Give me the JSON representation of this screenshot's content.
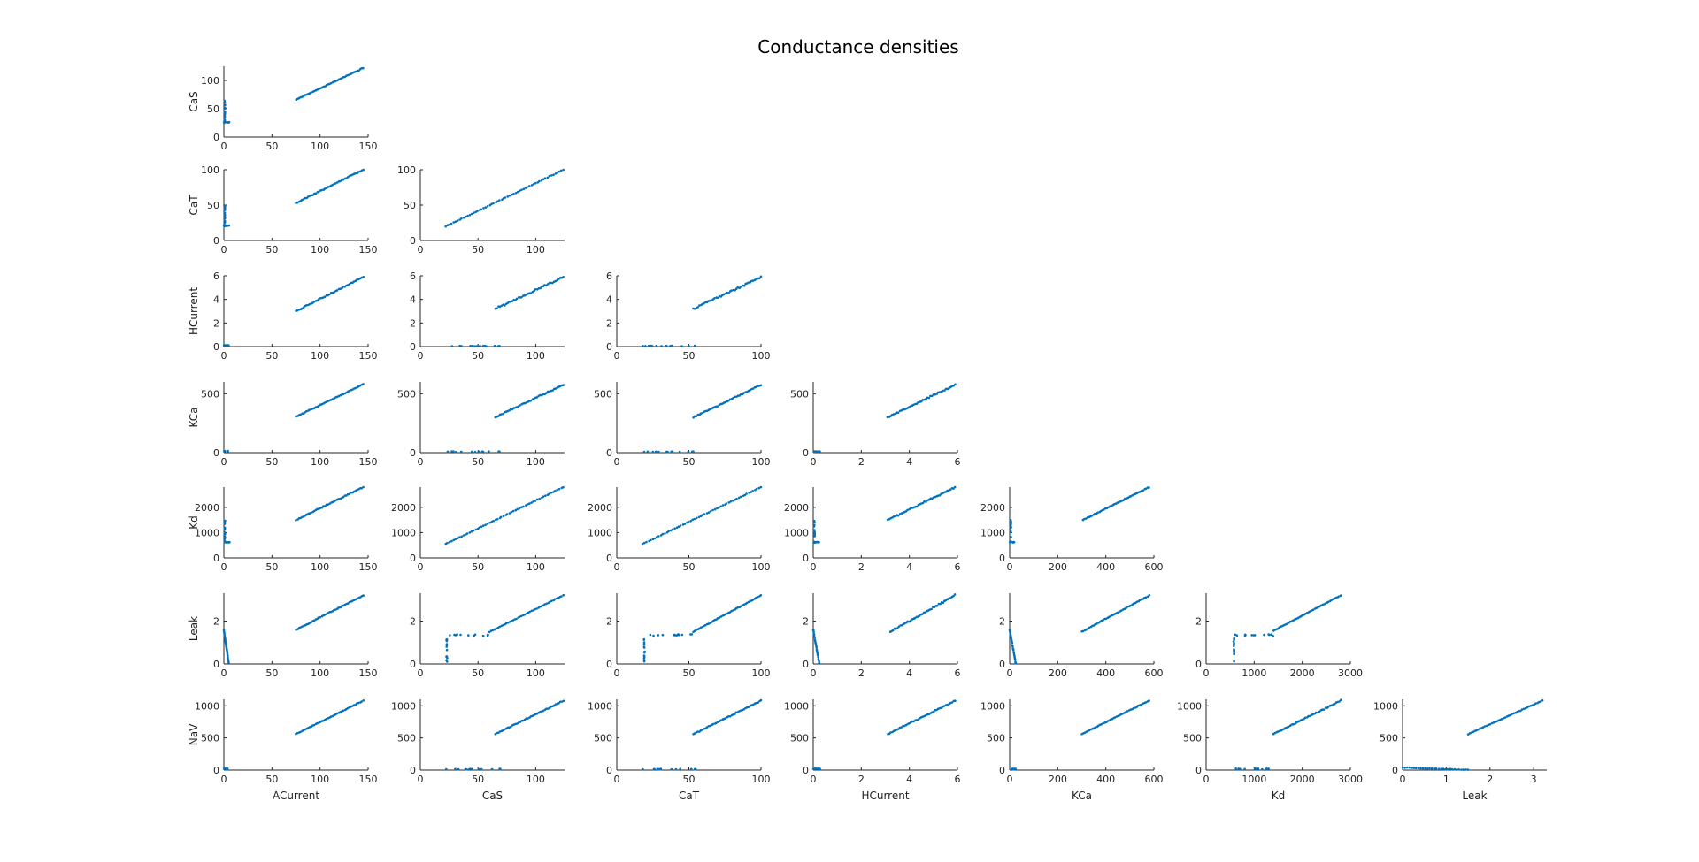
{
  "figure": {
    "title": "Conductance densities",
    "marker_color": "#0072BD"
  },
  "chart_data": {
    "type": "scatter",
    "title": "Conductance densities",
    "layout": "lower-triangular scatter matrix",
    "variables": [
      "ACurrent",
      "CaS",
      "CaT",
      "HCurrent",
      "KCa",
      "Kd",
      "Leak",
      "NaV"
    ],
    "axes": {
      "ACurrent": {
        "lim": [
          0,
          150
        ],
        "ticks": [
          0,
          50,
          100,
          150
        ]
      },
      "CaS": {
        "lim": [
          0,
          125
        ],
        "ticks": [
          0,
          50,
          100
        ]
      },
      "CaT": {
        "lim": [
          0,
          100
        ],
        "ticks": [
          0,
          50,
          100
        ]
      },
      "HCurrent": {
        "lim": [
          0,
          6
        ],
        "ticks": [
          0,
          2,
          4,
          6
        ]
      },
      "KCa": {
        "lim": [
          0,
          600
        ],
        "ticks": [
          0,
          200,
          400,
          600
        ],
        "ylim": [
          0,
          600
        ],
        "yticks": [
          0,
          500
        ]
      },
      "Kd": {
        "lim": [
          0,
          3000
        ],
        "ticks": [
          0,
          1000,
          2000,
          3000
        ],
        "ylim": [
          0,
          2800
        ],
        "yticks": [
          0,
          1000,
          2000
        ]
      },
      "Leak": {
        "lim": [
          0,
          3.3
        ],
        "ticks": [
          0,
          1,
          2,
          3
        ],
        "ylim": [
          0,
          3.3
        ],
        "yticks": [
          0,
          2
        ]
      },
      "NaV": {
        "lim": [
          0,
          1100
        ],
        "ticks": [
          0,
          500,
          1000
        ]
      }
    },
    "panels": [
      {
        "x": "ACurrent",
        "y": "CaS",
        "clusters": [
          {
            "type": "line",
            "x": [
              75,
              145
            ],
            "y": [
              66,
              122
            ],
            "n": 45,
            "noise": 1.2
          },
          {
            "type": "vertical",
            "x": 1,
            "y": [
              25,
              65
            ],
            "n": 18,
            "noise": 0.5
          },
          {
            "type": "horizontal",
            "y": 26,
            "x": [
              0,
              6
            ],
            "n": 10,
            "noise": 0.5
          }
        ]
      },
      {
        "x": "ACurrent",
        "y": "CaT",
        "clusters": [
          {
            "type": "line",
            "x": [
              75,
              145
            ],
            "y": [
              53,
              100
            ],
            "n": 45,
            "noise": 1.0
          },
          {
            "type": "vertical",
            "x": 1,
            "y": [
              20,
              52
            ],
            "n": 18,
            "noise": 0.5
          },
          {
            "type": "horizontal",
            "y": 21,
            "x": [
              0,
              6
            ],
            "n": 10,
            "noise": 0.5
          }
        ]
      },
      {
        "x": "CaS",
        "y": "CaT",
        "clusters": [
          {
            "type": "line",
            "x": [
              22,
              124
            ],
            "y": [
              20,
              100
            ],
            "n": 60,
            "noise": 0.6
          }
        ]
      },
      {
        "x": "ACurrent",
        "y": "HCurrent",
        "clusters": [
          {
            "type": "line",
            "x": [
              75,
              145
            ],
            "y": [
              3.0,
              5.9
            ],
            "n": 45,
            "noise": 0.07
          },
          {
            "type": "horizontal",
            "y": 0.1,
            "x": [
              0,
              5
            ],
            "n": 10,
            "noise": 0.04
          }
        ]
      },
      {
        "x": "CaS",
        "y": "HCurrent",
        "clusters": [
          {
            "type": "line",
            "x": [
              65,
              124
            ],
            "y": [
              3.2,
              5.9
            ],
            "n": 45,
            "noise": 0.1
          },
          {
            "type": "horizontal",
            "y": 0.05,
            "x": [
              22,
              70
            ],
            "n": 15,
            "noise": 0.04
          }
        ]
      },
      {
        "x": "CaT",
        "y": "HCurrent",
        "clusters": [
          {
            "type": "line",
            "x": [
              53,
              100
            ],
            "y": [
              3.2,
              5.9
            ],
            "n": 45,
            "noise": 0.1
          },
          {
            "type": "horizontal",
            "y": 0.05,
            "x": [
              18,
              55
            ],
            "n": 15,
            "noise": 0.04
          }
        ]
      },
      {
        "x": "ACurrent",
        "y": "KCa",
        "clusters": [
          {
            "type": "line",
            "x": [
              75,
              145
            ],
            "y": [
              305,
              580
            ],
            "n": 45,
            "noise": 4
          },
          {
            "type": "horizontal",
            "y": 12,
            "x": [
              0,
              5
            ],
            "n": 10,
            "noise": 4
          }
        ]
      },
      {
        "x": "CaS",
        "y": "KCa",
        "clusters": [
          {
            "type": "line",
            "x": [
              65,
              124
            ],
            "y": [
              300,
              575
            ],
            "n": 45,
            "noise": 8
          },
          {
            "type": "horizontal",
            "y": 8,
            "x": [
              22,
              70
            ],
            "n": 15,
            "noise": 4
          }
        ]
      },
      {
        "x": "CaT",
        "y": "KCa",
        "clusters": [
          {
            "type": "line",
            "x": [
              53,
              100
            ],
            "y": [
              300,
              575
            ],
            "n": 45,
            "noise": 8
          },
          {
            "type": "horizontal",
            "y": 8,
            "x": [
              18,
              55
            ],
            "n": 15,
            "noise": 4
          }
        ]
      },
      {
        "x": "HCurrent",
        "y": "KCa",
        "clusters": [
          {
            "type": "line",
            "x": [
              3.1,
              5.9
            ],
            "y": [
              300,
              575
            ],
            "n": 45,
            "noise": 8
          },
          {
            "type": "horizontal",
            "y": 10,
            "x": [
              0,
              0.3
            ],
            "n": 10,
            "noise": 4
          }
        ]
      },
      {
        "x": "ACurrent",
        "y": "Kd",
        "clusters": [
          {
            "type": "line",
            "x": [
              75,
              145
            ],
            "y": [
              1500,
              2800
            ],
            "n": 45,
            "noise": 25
          },
          {
            "type": "vertical",
            "x": 1,
            "y": [
              600,
              1500
            ],
            "n": 18,
            "noise": 0.5
          },
          {
            "type": "horizontal",
            "y": 620,
            "x": [
              0,
              6
            ],
            "n": 10,
            "noise": 10
          }
        ]
      },
      {
        "x": "CaS",
        "y": "Kd",
        "clusters": [
          {
            "type": "line",
            "x": [
              22,
              124
            ],
            "y": [
              550,
              2800
            ],
            "n": 60,
            "noise": 12
          }
        ]
      },
      {
        "x": "CaT",
        "y": "Kd",
        "clusters": [
          {
            "type": "line",
            "x": [
              18,
              100
            ],
            "y": [
              550,
              2800
            ],
            "n": 60,
            "noise": 12
          }
        ]
      },
      {
        "x": "HCurrent",
        "y": "Kd",
        "clusters": [
          {
            "type": "line",
            "x": [
              3.1,
              5.9
            ],
            "y": [
              1500,
              2800
            ],
            "n": 45,
            "noise": 40
          },
          {
            "type": "vertical",
            "x": 0.05,
            "y": [
              600,
              1500
            ],
            "n": 18,
            "noise": 0.02
          },
          {
            "type": "horizontal",
            "y": 620,
            "x": [
              0,
              0.3
            ],
            "n": 10,
            "noise": 10
          }
        ]
      },
      {
        "x": "KCa",
        "y": "Kd",
        "clusters": [
          {
            "type": "line",
            "x": [
              305,
              580
            ],
            "y": [
              1500,
              2800
            ],
            "n": 45,
            "noise": 25
          },
          {
            "type": "vertical",
            "x": 5,
            "y": [
              600,
              1500
            ],
            "n": 18,
            "noise": 2
          },
          {
            "type": "horizontal",
            "y": 620,
            "x": [
              0,
              25
            ],
            "n": 10,
            "noise": 10
          }
        ]
      },
      {
        "x": "ACurrent",
        "y": "Leak",
        "clusters": [
          {
            "type": "line",
            "x": [
              75,
              145
            ],
            "y": [
              1.6,
              3.2
            ],
            "n": 45,
            "noise": 0.03
          },
          {
            "type": "line",
            "x": [
              0,
              5
            ],
            "y": [
              1.6,
              0.05
            ],
            "n": 25,
            "noise": 0.05
          }
        ]
      },
      {
        "x": "CaS",
        "y": "Leak",
        "clusters": [
          {
            "type": "line",
            "x": [
              60,
              124
            ],
            "y": [
              1.5,
              3.2
            ],
            "n": 45,
            "noise": 0.02
          },
          {
            "type": "vertical",
            "x": 23,
            "y": [
              0.1,
              1.2
            ],
            "n": 15,
            "noise": 0.5
          },
          {
            "type": "horizontal",
            "y": 1.35,
            "x": [
              25,
              60
            ],
            "n": 14,
            "noise": 0.07
          }
        ]
      },
      {
        "x": "CaT",
        "y": "Leak",
        "clusters": [
          {
            "type": "line",
            "x": [
              53,
              100
            ],
            "y": [
              1.5,
              3.2
            ],
            "n": 45,
            "noise": 0.02
          },
          {
            "type": "vertical",
            "x": 19,
            "y": [
              0.1,
              1.2
            ],
            "n": 15,
            "noise": 0.5
          },
          {
            "type": "horizontal",
            "y": 1.35,
            "x": [
              20,
              55
            ],
            "n": 14,
            "noise": 0.07
          }
        ]
      },
      {
        "x": "HCurrent",
        "y": "Leak",
        "clusters": [
          {
            "type": "line",
            "x": [
              3.2,
              5.9
            ],
            "y": [
              1.5,
              3.2
            ],
            "n": 45,
            "noise": 0.05
          },
          {
            "type": "line",
            "x": [
              0,
              0.25
            ],
            "y": [
              1.6,
              0.05
            ],
            "n": 25,
            "noise": 0.05
          }
        ]
      },
      {
        "x": "KCa",
        "y": "Leak",
        "clusters": [
          {
            "type": "line",
            "x": [
              300,
              580
            ],
            "y": [
              1.5,
              3.2
            ],
            "n": 45,
            "noise": 0.03
          },
          {
            "type": "line",
            "x": [
              0,
              25
            ],
            "y": [
              1.6,
              0.05
            ],
            "n": 25,
            "noise": 0.05
          }
        ]
      },
      {
        "x": "Kd",
        "y": "Leak",
        "clusters": [
          {
            "type": "line",
            "x": [
              1400,
              2800
            ],
            "y": [
              1.55,
              3.2
            ],
            "n": 45,
            "noise": 0.02
          },
          {
            "type": "vertical",
            "x": 580,
            "y": [
              0.1,
              1.2
            ],
            "n": 15,
            "noise": 12
          },
          {
            "type": "horizontal",
            "y": 1.35,
            "x": [
              600,
              1400
            ],
            "n": 14,
            "noise": 0.07
          }
        ]
      },
      {
        "x": "ACurrent",
        "y": "NaV",
        "clusters": [
          {
            "type": "line",
            "x": [
              75,
              145
            ],
            "y": [
              560,
              1080
            ],
            "n": 45,
            "noise": 6
          },
          {
            "type": "horizontal",
            "y": 20,
            "x": [
              0,
              5
            ],
            "n": 10,
            "noise": 10
          }
        ]
      },
      {
        "x": "CaS",
        "y": "NaV",
        "clusters": [
          {
            "type": "line",
            "x": [
              65,
              124
            ],
            "y": [
              560,
              1080
            ],
            "n": 45,
            "noise": 12
          },
          {
            "type": "horizontal",
            "y": 15,
            "x": [
              22,
              70
            ],
            "n": 15,
            "noise": 8
          }
        ]
      },
      {
        "x": "CaT",
        "y": "NaV",
        "clusters": [
          {
            "type": "line",
            "x": [
              53,
              100
            ],
            "y": [
              560,
              1080
            ],
            "n": 45,
            "noise": 12
          },
          {
            "type": "horizontal",
            "y": 15,
            "x": [
              18,
              55
            ],
            "n": 15,
            "noise": 8
          }
        ]
      },
      {
        "x": "HCurrent",
        "y": "NaV",
        "clusters": [
          {
            "type": "line",
            "x": [
              3.1,
              5.9
            ],
            "y": [
              560,
              1080
            ],
            "n": 45,
            "noise": 12
          },
          {
            "type": "horizontal",
            "y": 20,
            "x": [
              0,
              0.3
            ],
            "n": 10,
            "noise": 10
          }
        ]
      },
      {
        "x": "KCa",
        "y": "NaV",
        "clusters": [
          {
            "type": "line",
            "x": [
              300,
              580
            ],
            "y": [
              560,
              1080
            ],
            "n": 45,
            "noise": 6
          },
          {
            "type": "horizontal",
            "y": 20,
            "x": [
              0,
              25
            ],
            "n": 10,
            "noise": 10
          }
        ]
      },
      {
        "x": "Kd",
        "y": "NaV",
        "clusters": [
          {
            "type": "line",
            "x": [
              1400,
              2800
            ],
            "y": [
              560,
              1080
            ],
            "n": 45,
            "noise": 12
          },
          {
            "type": "horizontal",
            "y": 20,
            "x": [
              550,
              1300
            ],
            "n": 14,
            "noise": 10
          }
        ]
      },
      {
        "x": "Leak",
        "y": "NaV",
        "clusters": [
          {
            "type": "line",
            "x": [
              1.5,
              3.2
            ],
            "y": [
              560,
              1080
            ],
            "n": 45,
            "noise": 8
          },
          {
            "type": "line",
            "x": [
              0,
              1.5
            ],
            "y": [
              40,
              5
            ],
            "n": 30,
            "noise": 6
          }
        ]
      }
    ]
  }
}
